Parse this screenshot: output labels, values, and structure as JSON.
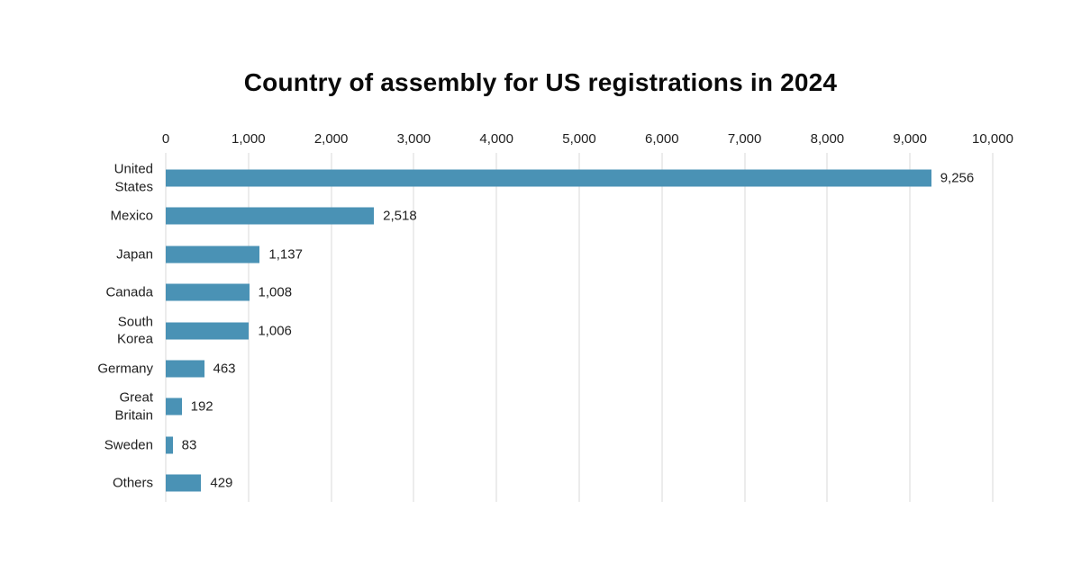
{
  "chart_data": {
    "type": "bar",
    "orientation": "horizontal",
    "title": "Country of assembly for US registrations in 2024",
    "categories": [
      "United States",
      "Mexico",
      "Japan",
      "Canada",
      "South Korea",
      "Germany",
      "Great Britain",
      "Sweden",
      "Others"
    ],
    "category_display_lines": [
      [
        "United",
        "States"
      ],
      [
        "Mexico"
      ],
      [
        "Japan"
      ],
      [
        "Canada"
      ],
      [
        "South Korea"
      ],
      [
        "Germany"
      ],
      [
        "Great Britain"
      ],
      [
        "Sweden"
      ],
      [
        "Others"
      ]
    ],
    "values": [
      9256,
      2518,
      1137,
      1008,
      1006,
      463,
      192,
      83,
      429
    ],
    "value_labels": [
      "9,256",
      "2,518",
      "1,137",
      "1,008",
      "1,006",
      "463",
      "192",
      "83",
      "429"
    ],
    "xlabel": "",
    "ylabel": "",
    "xlim": [
      0,
      10000
    ],
    "x_ticks": {
      "values": [
        0,
        1000,
        2000,
        3000,
        4000,
        5000,
        6000,
        7000,
        8000,
        9000,
        10000
      ],
      "labels": [
        "0",
        "1,000",
        "2,000",
        "3,000",
        "4,000",
        "5,000",
        "6,000",
        "7,000",
        "8,000",
        "9,000",
        "10,000"
      ]
    },
    "grid": "vertical-only",
    "legend": "none",
    "colors": {
      "bar": "#4a92b5",
      "gridline": "#dadada",
      "tick_text": "#212121",
      "value_text": "#212121",
      "category_text": "#212121",
      "title_text": "#0a0a0a",
      "background": "#ffffff"
    }
  }
}
